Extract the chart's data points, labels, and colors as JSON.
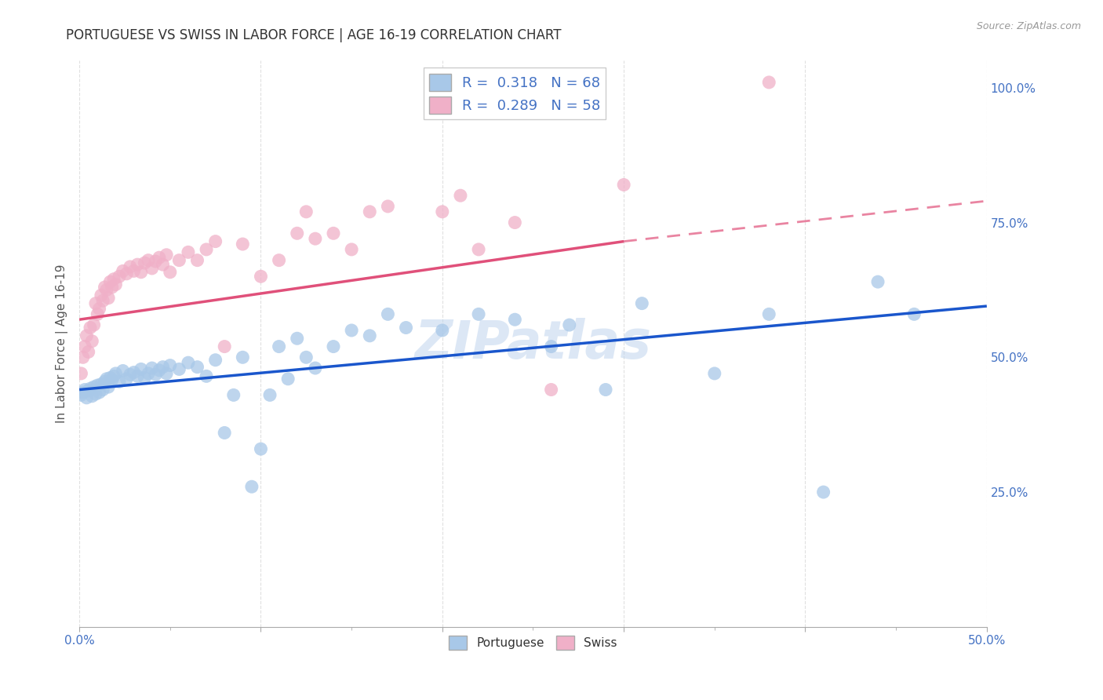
{
  "title": "PORTUGUESE VS SWISS IN LABOR FORCE | AGE 16-19 CORRELATION CHART",
  "source": "Source: ZipAtlas.com",
  "ylabel_label": "In Labor Force | Age 16-19",
  "xlim": [
    0.0,
    0.5
  ],
  "ylim": [
    0.0,
    1.05
  ],
  "yticks_right": [
    0.25,
    0.5,
    0.75,
    1.0
  ],
  "yticklabels_right": [
    "25.0%",
    "50.0%",
    "75.0%",
    "100.0%"
  ],
  "blue_color": "#a8c8e8",
  "pink_color": "#f0b0c8",
  "blue_line_color": "#1a56cc",
  "pink_line_color": "#e0507a",
  "portuguese_label": "Portuguese",
  "swiss_label": "Swiss",
  "portuguese_scatter": [
    [
      0.001,
      0.43
    ],
    [
      0.002,
      0.435
    ],
    [
      0.003,
      0.44
    ],
    [
      0.004,
      0.425
    ],
    [
      0.005,
      0.438
    ],
    [
      0.006,
      0.442
    ],
    [
      0.007,
      0.428
    ],
    [
      0.008,
      0.445
    ],
    [
      0.009,
      0.432
    ],
    [
      0.01,
      0.448
    ],
    [
      0.011,
      0.435
    ],
    [
      0.012,
      0.45
    ],
    [
      0.013,
      0.44
    ],
    [
      0.014,
      0.455
    ],
    [
      0.015,
      0.46
    ],
    [
      0.016,
      0.445
    ],
    [
      0.017,
      0.462
    ],
    [
      0.018,
      0.458
    ],
    [
      0.019,
      0.465
    ],
    [
      0.02,
      0.47
    ],
    [
      0.022,
      0.455
    ],
    [
      0.024,
      0.475
    ],
    [
      0.026,
      0.46
    ],
    [
      0.028,
      0.468
    ],
    [
      0.03,
      0.472
    ],
    [
      0.032,
      0.465
    ],
    [
      0.034,
      0.478
    ],
    [
      0.036,
      0.462
    ],
    [
      0.038,
      0.47
    ],
    [
      0.04,
      0.48
    ],
    [
      0.042,
      0.468
    ],
    [
      0.044,
      0.476
    ],
    [
      0.046,
      0.482
    ],
    [
      0.048,
      0.47
    ],
    [
      0.05,
      0.485
    ],
    [
      0.055,
      0.478
    ],
    [
      0.06,
      0.49
    ],
    [
      0.065,
      0.482
    ],
    [
      0.07,
      0.465
    ],
    [
      0.075,
      0.495
    ],
    [
      0.08,
      0.36
    ],
    [
      0.085,
      0.43
    ],
    [
      0.09,
      0.5
    ],
    [
      0.095,
      0.26
    ],
    [
      0.1,
      0.33
    ],
    [
      0.105,
      0.43
    ],
    [
      0.11,
      0.52
    ],
    [
      0.115,
      0.46
    ],
    [
      0.12,
      0.535
    ],
    [
      0.125,
      0.5
    ],
    [
      0.13,
      0.48
    ],
    [
      0.14,
      0.52
    ],
    [
      0.15,
      0.55
    ],
    [
      0.16,
      0.54
    ],
    [
      0.17,
      0.58
    ],
    [
      0.18,
      0.555
    ],
    [
      0.2,
      0.55
    ],
    [
      0.22,
      0.58
    ],
    [
      0.24,
      0.57
    ],
    [
      0.26,
      0.52
    ],
    [
      0.27,
      0.56
    ],
    [
      0.29,
      0.44
    ],
    [
      0.31,
      0.6
    ],
    [
      0.35,
      0.47
    ],
    [
      0.38,
      0.58
    ],
    [
      0.41,
      0.25
    ],
    [
      0.44,
      0.64
    ],
    [
      0.46,
      0.58
    ]
  ],
  "swiss_scatter": [
    [
      0.001,
      0.47
    ],
    [
      0.002,
      0.5
    ],
    [
      0.003,
      0.52
    ],
    [
      0.004,
      0.54
    ],
    [
      0.005,
      0.51
    ],
    [
      0.006,
      0.555
    ],
    [
      0.007,
      0.53
    ],
    [
      0.008,
      0.56
    ],
    [
      0.009,
      0.6
    ],
    [
      0.01,
      0.58
    ],
    [
      0.011,
      0.59
    ],
    [
      0.012,
      0.615
    ],
    [
      0.013,
      0.605
    ],
    [
      0.014,
      0.63
    ],
    [
      0.015,
      0.625
    ],
    [
      0.016,
      0.61
    ],
    [
      0.017,
      0.64
    ],
    [
      0.018,
      0.63
    ],
    [
      0.019,
      0.645
    ],
    [
      0.02,
      0.635
    ],
    [
      0.022,
      0.65
    ],
    [
      0.024,
      0.66
    ],
    [
      0.026,
      0.655
    ],
    [
      0.028,
      0.668
    ],
    [
      0.03,
      0.66
    ],
    [
      0.032,
      0.672
    ],
    [
      0.034,
      0.658
    ],
    [
      0.036,
      0.675
    ],
    [
      0.038,
      0.68
    ],
    [
      0.04,
      0.665
    ],
    [
      0.042,
      0.678
    ],
    [
      0.044,
      0.685
    ],
    [
      0.046,
      0.672
    ],
    [
      0.048,
      0.69
    ],
    [
      0.05,
      0.658
    ],
    [
      0.055,
      0.68
    ],
    [
      0.06,
      0.695
    ],
    [
      0.065,
      0.68
    ],
    [
      0.07,
      0.7
    ],
    [
      0.075,
      0.715
    ],
    [
      0.08,
      0.52
    ],
    [
      0.09,
      0.71
    ],
    [
      0.1,
      0.65
    ],
    [
      0.11,
      0.68
    ],
    [
      0.12,
      0.73
    ],
    [
      0.125,
      0.77
    ],
    [
      0.13,
      0.72
    ],
    [
      0.14,
      0.73
    ],
    [
      0.15,
      0.7
    ],
    [
      0.16,
      0.77
    ],
    [
      0.17,
      0.78
    ],
    [
      0.2,
      0.77
    ],
    [
      0.21,
      0.8
    ],
    [
      0.22,
      0.7
    ],
    [
      0.24,
      0.75
    ],
    [
      0.26,
      0.44
    ],
    [
      0.3,
      0.82
    ],
    [
      0.38,
      1.01
    ]
  ],
  "blue_trendline_solid": [
    [
      0.0,
      0.44
    ],
    [
      0.5,
      0.595
    ]
  ],
  "pink_trendline_solid": [
    [
      0.0,
      0.57
    ],
    [
      0.3,
      0.715
    ]
  ],
  "pink_trendline_dashed": [
    [
      0.3,
      0.715
    ],
    [
      0.5,
      0.79
    ]
  ],
  "background_color": "#ffffff",
  "grid_color": "#cccccc",
  "watermark_color": "#c0d5ee"
}
